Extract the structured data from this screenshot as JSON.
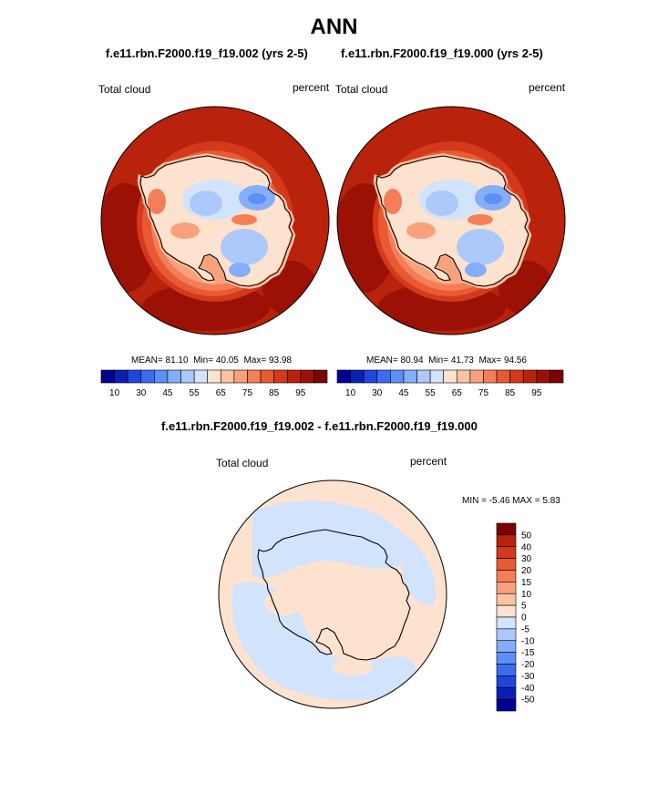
{
  "figure": {
    "title": "ANN",
    "panel_left": {
      "subtitle": "f.e11.rbn.F2000.f19_f19.002 (yrs 2-5)",
      "variable": "Total cloud",
      "units": "percent",
      "mean_label": "MEAN=",
      "mean": "81.10",
      "min_label": "Min=",
      "min": "40.05",
      "max_label": "Max=",
      "max": "93.98"
    },
    "panel_right": {
      "subtitle": "f.e11.rbn.F2000.f19_f19.000 (yrs 2-5)",
      "variable": "Total cloud",
      "units": "percent",
      "mean_label": "MEAN=",
      "mean": "80.94",
      "min_label": "Min=",
      "min": "41.73",
      "max_label": "Max=",
      "max": "94.56"
    },
    "panel_diff": {
      "subtitle": "f.e11.rbn.F2000.f19_f19.002 - f.e11.rbn.F2000.f19_f19.000",
      "variable": "Total cloud",
      "units": "percent",
      "minmax_text": "MIN =  -5.46 MAX =   5.83"
    },
    "colorbar_labels": [
      "10",
      "30",
      "45",
      "55",
      "65",
      "75",
      "85",
      "95"
    ],
    "diff_colorbar_labels": [
      "50",
      "40",
      "30",
      "20",
      "15",
      "10",
      "5",
      "0",
      "-5",
      "-10",
      "-15",
      "-20",
      "-30",
      "-40",
      "-50"
    ]
  },
  "chart_data": [
    {
      "type": "heatmap",
      "projection": "south polar stereographic",
      "title": "f.e11.rbn.F2000.f19_f19.002 (yrs 2-5)",
      "variable": "Total cloud",
      "units": "percent",
      "mean": 81.1,
      "min": 40.05,
      "max": 93.98,
      "levels": [
        5,
        10,
        20,
        30,
        40,
        45,
        50,
        55,
        60,
        65,
        70,
        75,
        80,
        85,
        90,
        95
      ],
      "colors": [
        "#000090",
        "#0a1fb4",
        "#1f45dc",
        "#3b6bef",
        "#5d8ff7",
        "#85aef9",
        "#adc9fb",
        "#d2e3fc",
        "#fde2cf",
        "#fcc2a4",
        "#f9a17c",
        "#f47e57",
        "#e85a33",
        "#d3391a",
        "#b9220b",
        "#9b1106",
        "#7a0403"
      ]
    },
    {
      "type": "heatmap",
      "projection": "south polar stereographic",
      "title": "f.e11.rbn.F2000.f19_f19.000 (yrs 2-5)",
      "variable": "Total cloud",
      "units": "percent",
      "mean": 80.94,
      "min": 41.73,
      "max": 94.56,
      "levels": [
        5,
        10,
        20,
        30,
        40,
        45,
        50,
        55,
        60,
        65,
        70,
        75,
        80,
        85,
        90,
        95
      ]
    },
    {
      "type": "heatmap",
      "projection": "south polar stereographic",
      "title": "f.e11.rbn.F2000.f19_f19.002 - f.e11.rbn.F2000.f19_f19.000",
      "variable": "Total cloud",
      "units": "percent",
      "min": -5.46,
      "max": 5.83,
      "levels": [
        -50,
        -40,
        -30,
        -20,
        -15,
        -10,
        -5,
        0,
        5,
        10,
        15,
        20,
        30,
        40,
        50
      ],
      "colors": [
        "#000090",
        "#0a1fb4",
        "#1f45dc",
        "#3b6bef",
        "#5d8ff7",
        "#85aef9",
        "#adc9fb",
        "#d2e3fc",
        "#fde2cf",
        "#fcc2a4",
        "#f9a17c",
        "#f47e57",
        "#e85a33",
        "#d3391a",
        "#b9220b",
        "#7a0403"
      ]
    }
  ]
}
